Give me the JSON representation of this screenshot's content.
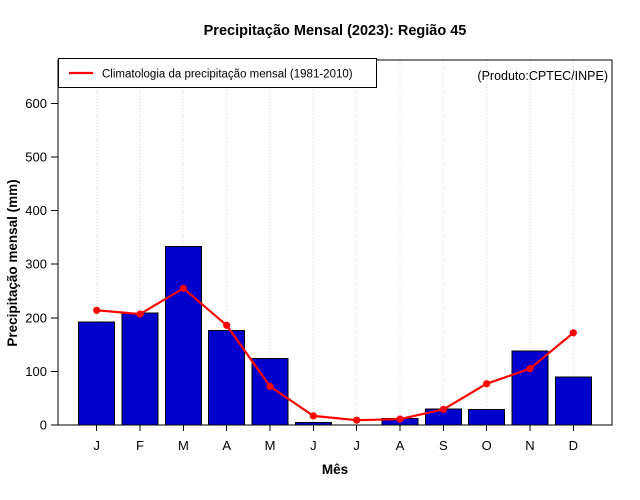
{
  "title": "Precipitação Mensal (2023): Região 45",
  "source_note": "(Produto:CPTEC/INPE)",
  "legend": {
    "climatology_label": "Climatologia da precipitação mensal (1981-2010)"
  },
  "axes": {
    "x_label": "Mês",
    "y_label": "Precipitação mensal (mm)"
  },
  "chart_data": {
    "type": "bar",
    "title": "Precipitação Mensal (2023): Região 45",
    "xlabel": "Mês",
    "ylabel": "Precipitação mensal (mm)",
    "categories": [
      "J",
      "F",
      "M",
      "A",
      "M",
      "J",
      "J",
      "A",
      "S",
      "O",
      "N",
      "D"
    ],
    "series": [
      {
        "name": "Precipitação mensal 2023",
        "type": "bar",
        "color": "#0000cd",
        "values": [
          192,
          209,
          333,
          176,
          124,
          5,
          0,
          12,
          30,
          29,
          138,
          90
        ]
      },
      {
        "name": "Climatologia da precipitação mensal (1981-2010)",
        "type": "line",
        "color": "#ff0000",
        "values": [
          214,
          207,
          255,
          186,
          72,
          17,
          9,
          11,
          29,
          77,
          105,
          172
        ]
      }
    ],
    "ylim": [
      0,
      680
    ],
    "yticks": [
      0,
      100,
      200,
      300,
      400,
      500,
      600
    ],
    "grid": "vertical dotted gridlines at each month",
    "legend_position": "top-left",
    "annotation": "(Produto:CPTEC/INPE)"
  },
  "colors": {
    "bar_fill": "#0000cd",
    "bar_border": "#000000",
    "line": "#ff0000",
    "grid": "#d4d4d4",
    "frame": "#000000",
    "annotation_text": "#7f7f7f",
    "background": "#ffffff"
  }
}
